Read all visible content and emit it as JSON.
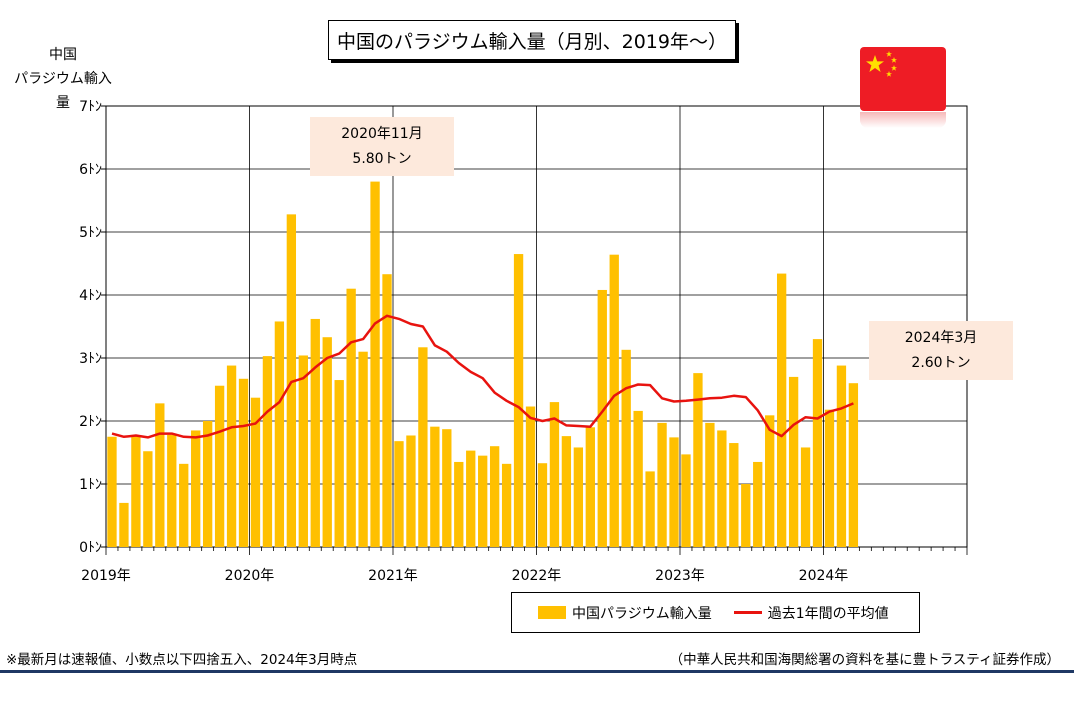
{
  "chart_data": {
    "type": "bar",
    "title": "中国のパラジウム輸入量（月別、2019年～）",
    "ylabel_lines": [
      "中国",
      "パラジウム輸入量"
    ],
    "ylim": [
      0,
      7
    ],
    "y_ticks": [
      "0ﾄﾝ",
      "1ﾄﾝ",
      "2ﾄﾝ",
      "3ﾄﾝ",
      "4ﾄﾝ",
      "5ﾄﾝ",
      "6ﾄﾝ",
      "7ﾄﾝ"
    ],
    "x_ticks": [
      "2019年",
      "2020年",
      "2021年",
      "2022年",
      "2023年",
      "2024年"
    ],
    "months_on_axis": 72,
    "first_month": "2019-01",
    "grid": true,
    "legend_position": "bottom",
    "series": [
      {
        "name": "中国パラジウム輸入量",
        "kind": "bar",
        "values": [
          1.75,
          0.7,
          1.77,
          1.52,
          2.28,
          1.78,
          1.32,
          1.85,
          2.0,
          2.56,
          2.88,
          2.67,
          2.37,
          3.03,
          3.58,
          5.28,
          3.04,
          3.62,
          3.33,
          2.65,
          4.1,
          3.1,
          5.8,
          4.33,
          1.68,
          1.77,
          3.17,
          1.91,
          1.87,
          1.35,
          1.53,
          1.45,
          1.6,
          1.32,
          4.65,
          2.23,
          1.33,
          2.3,
          1.76,
          1.58,
          1.9,
          4.08,
          4.64,
          3.13,
          2.16,
          1.2,
          1.97,
          1.74,
          1.47,
          2.76,
          1.97,
          1.85,
          1.65,
          1.0,
          1.35,
          2.09,
          4.34,
          2.7,
          1.58,
          3.3,
          2.18,
          2.88,
          2.6
        ]
      },
      {
        "name": "過去1年間の平均値",
        "kind": "line",
        "values": [
          1.8,
          1.75,
          1.77,
          1.74,
          1.8,
          1.8,
          1.75,
          1.74,
          1.77,
          1.83,
          1.9,
          1.92,
          1.96,
          2.15,
          2.3,
          2.62,
          2.68,
          2.85,
          3.0,
          3.07,
          3.25,
          3.3,
          3.55,
          3.67,
          3.62,
          3.54,
          3.5,
          3.2,
          3.1,
          2.92,
          2.78,
          2.68,
          2.45,
          2.32,
          2.22,
          2.05,
          2.0,
          2.04,
          1.93,
          1.92,
          1.91,
          2.15,
          2.4,
          2.52,
          2.58,
          2.57,
          2.36,
          2.31,
          2.32,
          2.34,
          2.36,
          2.37,
          2.4,
          2.38,
          2.17,
          1.86,
          1.76,
          1.94,
          2.06,
          2.04,
          2.15,
          2.2,
          2.28
        ]
      }
    ],
    "annotations": [
      {
        "line1": "2020年11月",
        "line2": "5.80トン"
      },
      {
        "line1": "2024年3月",
        "line2": "2.60トン"
      }
    ]
  },
  "flag": {
    "name": "china-flag-icon",
    "red": "#ee1c25",
    "yellow": "#ffde00"
  },
  "colors": {
    "bar": "#ffc000",
    "line": "#e8130f",
    "grid": "#000000",
    "bottom_rule": "#1f3864"
  },
  "footnote": "※最新月は速報値、小数点以下四捨五入、2024年3月時点",
  "source": "（中華人民共和国海関総署の資料を基に豊トラスティ証券作成）"
}
